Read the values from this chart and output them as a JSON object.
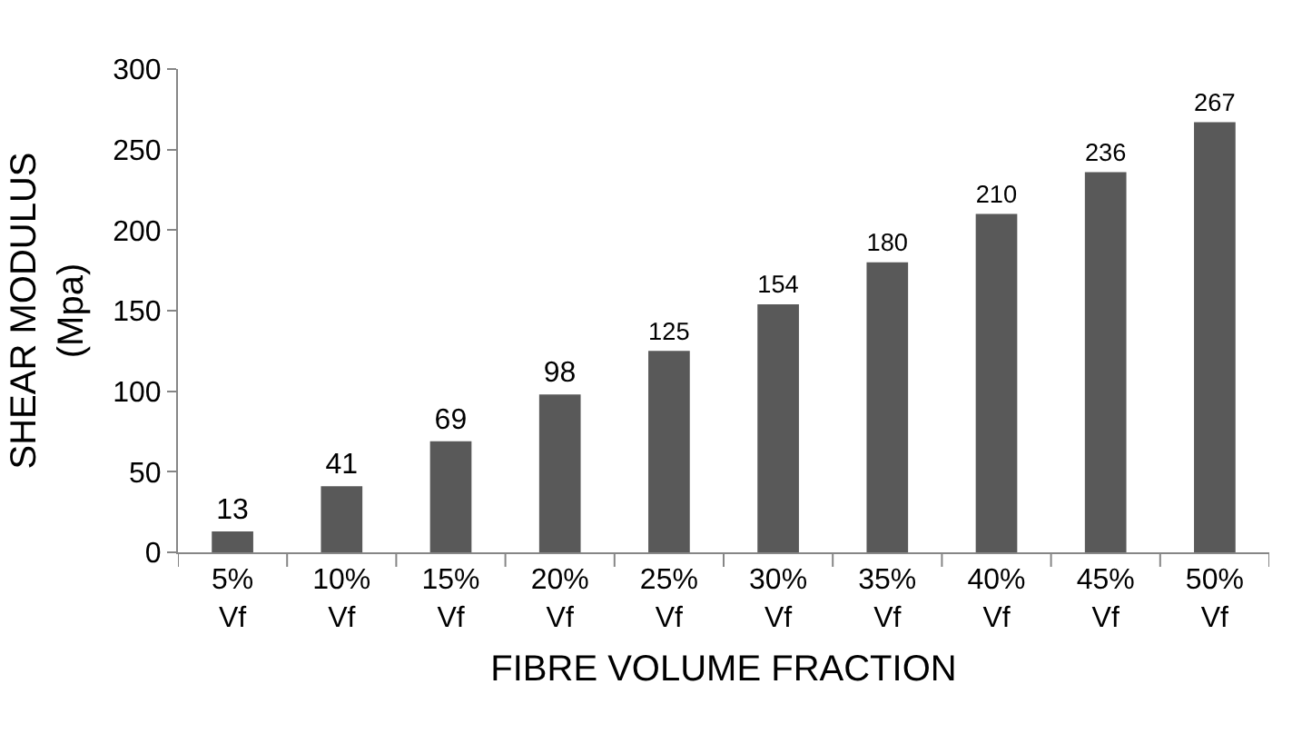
{
  "chart_data": {
    "type": "bar",
    "xlabel": "FIBRE VOLUME FRACTION",
    "ylabel": "SHEAR MODULUS (Mpa)",
    "categories": [
      "5% Vf",
      "10% Vf",
      "15% Vf",
      "20% Vf",
      "25% Vf",
      "30% Vf",
      "35% Vf",
      "40% Vf",
      "45% Vf",
      "50% Vf"
    ],
    "values": [
      13,
      41,
      69,
      98,
      125,
      154,
      180,
      210,
      236,
      267
    ],
    "color": "#595959",
    "ylim": [
      0,
      300
    ],
    "yticks": [
      0,
      50,
      100,
      150,
      200,
      250,
      300
    ],
    "grid": false,
    "legend": false,
    "data_labels": true
  }
}
